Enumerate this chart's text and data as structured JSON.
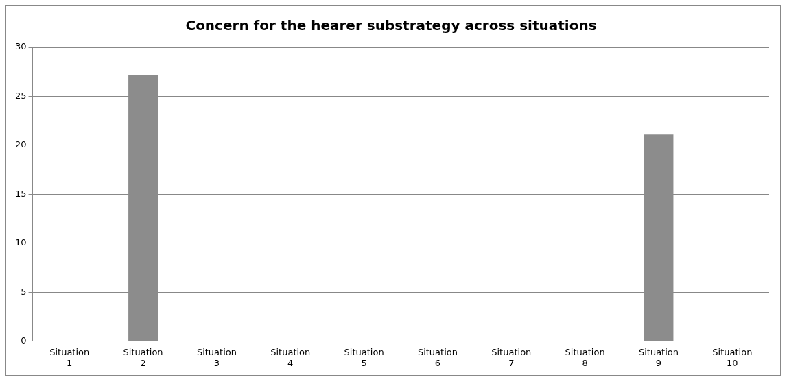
{
  "chart_data": {
    "type": "bar",
    "title": "Concern for the hearer substrategy across situations",
    "categories": [
      "Situation 1",
      "Situation 2",
      "Situation 3",
      "Situation 4",
      "Situation 5",
      "Situation 6",
      "Situation 7",
      "Situation 8",
      "Situation 9",
      "Situation 10"
    ],
    "values": [
      0,
      27.2,
      0,
      0,
      0,
      0,
      0,
      0,
      21.1,
      0
    ],
    "color": "#8c8c8c",
    "ylim": [
      0,
      30
    ],
    "yticks": [
      0,
      5,
      10,
      15,
      20,
      25,
      30
    ],
    "grid": "y"
  }
}
